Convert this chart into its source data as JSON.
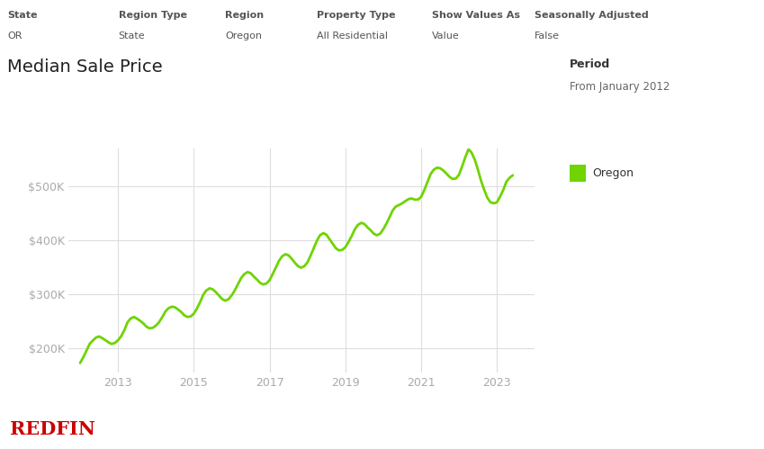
{
  "title": "Median Sale Price",
  "header_labels": [
    [
      "State",
      "OR"
    ],
    [
      "Region Type",
      "State"
    ],
    [
      "Region",
      "Oregon"
    ],
    [
      "Property Type",
      "All Residential"
    ],
    [
      "Show Values As",
      "Value"
    ],
    [
      "Seasonally Adjusted",
      "False"
    ]
  ],
  "period_label": "Period",
  "period_value": "From January 2012",
  "legend_label": "Oregon",
  "line_color": "#6fd400",
  "redfin_color": "#cc0000",
  "bg_color": "#ffffff",
  "grid_color": "#dddddd",
  "tick_color": "#aaaaaa",
  "title_color": "#222222",
  "ytick_values": [
    200000,
    300000,
    400000,
    500000
  ],
  "ylim": [
    155000,
    570000
  ],
  "xlim": [
    2011.7,
    2024.0
  ],
  "xtick_years": [
    2013,
    2015,
    2017,
    2019,
    2021,
    2023
  ],
  "data": [
    [
      2012.0,
      173000
    ],
    [
      2012.08,
      183000
    ],
    [
      2012.17,
      196000
    ],
    [
      2012.25,
      208000
    ],
    [
      2012.33,
      214000
    ],
    [
      2012.42,
      220000
    ],
    [
      2012.5,
      222000
    ],
    [
      2012.58,
      219000
    ],
    [
      2012.67,
      215000
    ],
    [
      2012.75,
      211000
    ],
    [
      2012.83,
      208000
    ],
    [
      2012.92,
      210000
    ],
    [
      2013.0,
      215000
    ],
    [
      2013.08,
      222000
    ],
    [
      2013.17,
      234000
    ],
    [
      2013.25,
      248000
    ],
    [
      2013.33,
      255000
    ],
    [
      2013.42,
      258000
    ],
    [
      2013.5,
      255000
    ],
    [
      2013.58,
      251000
    ],
    [
      2013.67,
      246000
    ],
    [
      2013.75,
      240000
    ],
    [
      2013.83,
      237000
    ],
    [
      2013.92,
      238000
    ],
    [
      2014.0,
      242000
    ],
    [
      2014.08,
      248000
    ],
    [
      2014.17,
      258000
    ],
    [
      2014.25,
      268000
    ],
    [
      2014.33,
      274000
    ],
    [
      2014.42,
      277000
    ],
    [
      2014.5,
      276000
    ],
    [
      2014.58,
      272000
    ],
    [
      2014.67,
      267000
    ],
    [
      2014.75,
      261000
    ],
    [
      2014.83,
      258000
    ],
    [
      2014.92,
      259000
    ],
    [
      2015.0,
      264000
    ],
    [
      2015.08,
      273000
    ],
    [
      2015.17,
      286000
    ],
    [
      2015.25,
      299000
    ],
    [
      2015.33,
      307000
    ],
    [
      2015.42,
      311000
    ],
    [
      2015.5,
      309000
    ],
    [
      2015.58,
      304000
    ],
    [
      2015.67,
      297000
    ],
    [
      2015.75,
      291000
    ],
    [
      2015.83,
      288000
    ],
    [
      2015.92,
      291000
    ],
    [
      2016.0,
      298000
    ],
    [
      2016.08,
      307000
    ],
    [
      2016.17,
      319000
    ],
    [
      2016.25,
      330000
    ],
    [
      2016.33,
      337000
    ],
    [
      2016.42,
      341000
    ],
    [
      2016.5,
      339000
    ],
    [
      2016.58,
      333000
    ],
    [
      2016.67,
      327000
    ],
    [
      2016.75,
      321000
    ],
    [
      2016.83,
      318000
    ],
    [
      2016.92,
      320000
    ],
    [
      2017.0,
      326000
    ],
    [
      2017.08,
      337000
    ],
    [
      2017.17,
      350000
    ],
    [
      2017.25,
      362000
    ],
    [
      2017.33,
      370000
    ],
    [
      2017.42,
      374000
    ],
    [
      2017.5,
      372000
    ],
    [
      2017.58,
      366000
    ],
    [
      2017.67,
      358000
    ],
    [
      2017.75,
      352000
    ],
    [
      2017.83,
      349000
    ],
    [
      2017.92,
      352000
    ],
    [
      2018.0,
      359000
    ],
    [
      2018.08,
      371000
    ],
    [
      2018.17,
      386000
    ],
    [
      2018.25,
      399000
    ],
    [
      2018.33,
      409000
    ],
    [
      2018.42,
      413000
    ],
    [
      2018.5,
      410000
    ],
    [
      2018.58,
      402000
    ],
    [
      2018.67,
      393000
    ],
    [
      2018.75,
      385000
    ],
    [
      2018.83,
      381000
    ],
    [
      2018.92,
      382000
    ],
    [
      2019.0,
      387000
    ],
    [
      2019.08,
      396000
    ],
    [
      2019.17,
      408000
    ],
    [
      2019.25,
      420000
    ],
    [
      2019.33,
      428000
    ],
    [
      2019.42,
      432000
    ],
    [
      2019.5,
      430000
    ],
    [
      2019.58,
      424000
    ],
    [
      2019.67,
      418000
    ],
    [
      2019.75,
      412000
    ],
    [
      2019.83,
      409000
    ],
    [
      2019.92,
      412000
    ],
    [
      2020.0,
      420000
    ],
    [
      2020.08,
      430000
    ],
    [
      2020.17,
      443000
    ],
    [
      2020.25,
      455000
    ],
    [
      2020.33,
      462000
    ],
    [
      2020.42,
      465000
    ],
    [
      2020.5,
      468000
    ],
    [
      2020.58,
      472000
    ],
    [
      2020.67,
      476000
    ],
    [
      2020.75,
      477000
    ],
    [
      2020.83,
      475000
    ],
    [
      2020.92,
      475000
    ],
    [
      2021.0,
      480000
    ],
    [
      2021.08,
      492000
    ],
    [
      2021.17,
      508000
    ],
    [
      2021.25,
      522000
    ],
    [
      2021.33,
      530000
    ],
    [
      2021.42,
      534000
    ],
    [
      2021.5,
      533000
    ],
    [
      2021.58,
      529000
    ],
    [
      2021.67,
      523000
    ],
    [
      2021.75,
      517000
    ],
    [
      2021.83,
      513000
    ],
    [
      2021.92,
      514000
    ],
    [
      2022.0,
      521000
    ],
    [
      2022.08,
      536000
    ],
    [
      2022.17,
      554000
    ],
    [
      2022.25,
      568000
    ],
    [
      2022.33,
      562000
    ],
    [
      2022.42,
      548000
    ],
    [
      2022.5,
      530000
    ],
    [
      2022.58,
      510000
    ],
    [
      2022.67,
      492000
    ],
    [
      2022.75,
      478000
    ],
    [
      2022.83,
      470000
    ],
    [
      2022.92,
      468000
    ],
    [
      2023.0,
      470000
    ],
    [
      2023.08,
      480000
    ],
    [
      2023.17,
      493000
    ],
    [
      2023.25,
      508000
    ],
    [
      2023.33,
      515000
    ],
    [
      2023.42,
      520000
    ]
  ]
}
